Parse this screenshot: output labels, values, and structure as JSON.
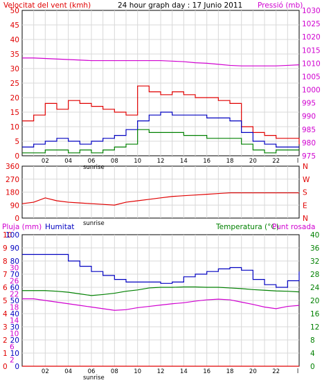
{
  "colors": {
    "red": "#e00000",
    "blue": "#0000c0",
    "green": "#008000",
    "magenta": "#d000d0",
    "grid": "#d8d8d8",
    "frame": "#000000"
  },
  "panel1": {
    "title": "24 hour graph day : 17 Junio 2011",
    "left_label": "Velocitat del vent (kmh)",
    "right_label": "Pressió (mb)",
    "left_ticks": [
      "50",
      "45",
      "40",
      "35",
      "30",
      "25",
      "20",
      "15",
      "10",
      "5",
      "0"
    ],
    "right_ticks": [
      "1030",
      "1025",
      "1020",
      "1015",
      "1010",
      "1005",
      "1000",
      "995",
      "990",
      "985",
      "980",
      "975"
    ]
  },
  "panel2": {
    "left_ticks": [
      "360",
      "270",
      "180",
      "90",
      "0"
    ],
    "right_ticks": [
      "N",
      "W",
      "S",
      "E",
      "N"
    ]
  },
  "panel3": {
    "label_rain": "Pluja (mm)",
    "label_hum": "Humitat",
    "label_temp": "Temperatura (°C)",
    "label_dew": "Punt rosada",
    "rain_ticks": [
      "10",
      "9",
      "8",
      "7",
      "6",
      "5",
      "4",
      "3",
      "2",
      "1",
      "0"
    ],
    "hum_ticks": [
      "100",
      "90",
      "80",
      "70",
      "60",
      "50",
      "40",
      "30",
      "20",
      "10",
      "0"
    ],
    "temp_left_ticks": [
      "30",
      "26",
      "22",
      "18",
      "14",
      "10",
      "6",
      "2"
    ],
    "temp_right_ticks": [
      "40",
      "36",
      "32",
      "28",
      "24",
      "20",
      "16",
      "12",
      "8",
      "4",
      "0"
    ]
  },
  "x_ticks": [
    "02",
    "04",
    "06",
    "08",
    "10",
    "12",
    "14",
    "16",
    "18",
    "20",
    "22"
  ],
  "x_end": "l",
  "sunrise": "sunrise",
  "chart_data": [
    {
      "type": "line",
      "title": "24 hour graph day : 17 Junio 2011",
      "xlabel": "",
      "ylabel": "Velocitat del vent (kmh)",
      "ylim": [
        0,
        50
      ],
      "y2label": "Pressió (mb)",
      "y2lim": [
        975,
        1030
      ],
      "x": [
        0,
        1,
        2,
        3,
        4,
        5,
        6,
        7,
        8,
        9,
        10,
        11,
        12,
        13,
        14,
        15,
        16,
        17,
        18,
        19,
        20,
        21,
        22,
        23,
        24
      ],
      "series": [
        {
          "values": [
            12,
            14,
            18,
            16,
            19,
            18,
            17,
            16,
            15,
            14,
            24,
            22,
            21,
            22,
            21,
            20,
            20,
            19,
            18,
            10,
            8,
            7,
            6,
            6,
            4
          ]
        },
        {
          "values": [
            3,
            4,
            5,
            6,
            5,
            4,
            5,
            6,
            7,
            9,
            12,
            14,
            15,
            14,
            14,
            14,
            13,
            13,
            12,
            8,
            5,
            4,
            3,
            3,
            3
          ]
        },
        {
          "values": [
            1,
            1,
            2,
            2,
            1,
            2,
            1,
            2,
            3,
            4,
            9,
            8,
            8,
            8,
            7,
            7,
            6,
            6,
            6,
            4,
            2,
            1,
            2,
            2,
            2
          ]
        },
        {
          "name": "Pressió (mb)",
          "axis": "right",
          "values": [
            1012,
            1012,
            1011.8,
            1011.6,
            1011.4,
            1011.2,
            1011,
            1011,
            1011,
            1011,
            1011,
            1011,
            1011,
            1010.8,
            1010.6,
            1010.2,
            1010,
            1009.6,
            1009.2,
            1009,
            1009,
            1009,
            1009,
            1009.2,
            1009.4
          ]
        }
      ]
    },
    {
      "type": "line",
      "ylabel": "",
      "ylim": [
        0,
        360
      ],
      "x": [
        0,
        1,
        2,
        3,
        4,
        5,
        6,
        7,
        8,
        9,
        10,
        11,
        12,
        13,
        14,
        15,
        16,
        17,
        18,
        19,
        20,
        21,
        22,
        23,
        24
      ],
      "series": [
        {
          "values": [
            100,
            110,
            140,
            120,
            110,
            105,
            100,
            95,
            90,
            110,
            120,
            130,
            140,
            150,
            155,
            160,
            165,
            170,
            175,
            175,
            175,
            175,
            175,
            175,
            175
          ]
        }
      ]
    },
    {
      "type": "line",
      "ylim": [
        0,
        10
      ],
      "x": [
        0,
        1,
        2,
        3,
        4,
        5,
        6,
        7,
        8,
        9,
        10,
        11,
        12,
        13,
        14,
        15,
        16,
        17,
        18,
        19,
        20,
        21,
        22,
        23,
        24
      ],
      "series": [
        {
          "name": "Pluja (mm)",
          "values": [
            0,
            0,
            0,
            0,
            0,
            0,
            0,
            0,
            0,
            0,
            0,
            0,
            0,
            0,
            0,
            0,
            0,
            0,
            0,
            0,
            0,
            0,
            0,
            0,
            0
          ]
        },
        {
          "name": "Humitat",
          "axis": "humidity",
          "ylim": [
            0,
            100
          ],
          "values": [
            85,
            85,
            85,
            85,
            80,
            76,
            72,
            69,
            66,
            64,
            64,
            64,
            63,
            64,
            68,
            70,
            72,
            74,
            75,
            73,
            66,
            62,
            60,
            65,
            72
          ]
        },
        {
          "name": "Temperatura (°C)",
          "axis": "right",
          "ylim": [
            0,
            40
          ],
          "values": [
            23,
            23,
            23,
            22.8,
            22.5,
            22,
            21.5,
            21.8,
            22.2,
            22.8,
            23.2,
            23.8,
            24,
            24,
            24.1,
            24.1,
            24,
            24,
            23.8,
            23.6,
            23.3,
            23.1,
            22.9,
            22.8,
            22.6
          ]
        },
        {
          "name": "Punt rosada",
          "axis": "right",
          "ylim": [
            0,
            40
          ],
          "values": [
            20.5,
            20.5,
            20,
            19.5,
            19,
            18.5,
            18,
            17.5,
            17,
            17.2,
            17.8,
            18.2,
            18.6,
            19,
            19.3,
            19.8,
            20.2,
            20.4,
            20.2,
            19.5,
            18.8,
            18,
            17.5,
            18.2,
            18.5
          ]
        }
      ]
    }
  ]
}
